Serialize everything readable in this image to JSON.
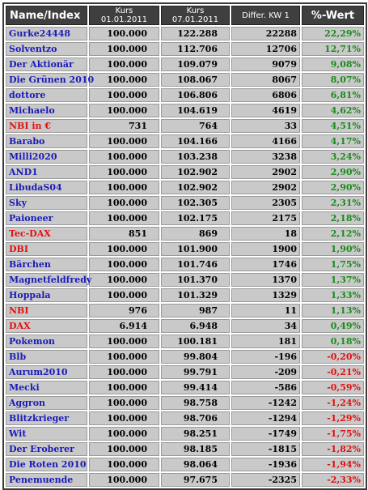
{
  "table": {
    "headers": {
      "name": "Name/Index",
      "kurs1": "Kurs 01.01.2011",
      "kurs2": "Kurs 07.01.2011",
      "diff": "Differ. KW 1",
      "pct": "%-Wert"
    },
    "colors": {
      "name_blue": "#1a1ab8",
      "name_red": "#e01010",
      "pct_positive": "#1a8a1a",
      "pct_negative": "#e01010",
      "header_bg": "#3f3f3f",
      "cell_bg": "#c9c9c9"
    },
    "rows": [
      {
        "name": "Gurke24448",
        "k1": "100.000",
        "k2": "122.288",
        "diff": "22288",
        "pct": "22,29%",
        "nc": "blue",
        "pc": "green"
      },
      {
        "name": "Solventzo",
        "k1": "100.000",
        "k2": "112.706",
        "diff": "12706",
        "pct": "12,71%",
        "nc": "blue",
        "pc": "green"
      },
      {
        "name": "Der Aktionär",
        "k1": "100.000",
        "k2": "109.079",
        "diff": "9079",
        "pct": "9,08%",
        "nc": "blue",
        "pc": "green"
      },
      {
        "name": "Die Grünen 2010",
        "k1": "100.000",
        "k2": "108.067",
        "diff": "8067",
        "pct": "8,07%",
        "nc": "blue",
        "pc": "green"
      },
      {
        "name": "dottore",
        "k1": "100.000",
        "k2": "106.806",
        "diff": "6806",
        "pct": "6,81%",
        "nc": "blue",
        "pc": "green"
      },
      {
        "name": "Michaelo",
        "k1": "100.000",
        "k2": "104.619",
        "diff": "4619",
        "pct": "4,62%",
        "nc": "blue",
        "pc": "green"
      },
      {
        "name": "NBI in €",
        "k1": "731",
        "k2": "764",
        "diff": "33",
        "pct": "4,51%",
        "nc": "red",
        "pc": "green"
      },
      {
        "name": "Barabo",
        "k1": "100.000",
        "k2": "104.166",
        "diff": "4166",
        "pct": "4,17%",
        "nc": "blue",
        "pc": "green"
      },
      {
        "name": "Milli2020",
        "k1": "100.000",
        "k2": "103.238",
        "diff": "3238",
        "pct": "3,24%",
        "nc": "blue",
        "pc": "green"
      },
      {
        "name": "AND1",
        "k1": "100.000",
        "k2": "102.902",
        "diff": "2902",
        "pct": "2,90%",
        "nc": "blue",
        "pc": "green"
      },
      {
        "name": "LibudaS04",
        "k1": "100.000",
        "k2": "102.902",
        "diff": "2902",
        "pct": "2,90%",
        "nc": "blue",
        "pc": "green"
      },
      {
        "name": "Sky",
        "k1": "100.000",
        "k2": "102.305",
        "diff": "2305",
        "pct": "2,31%",
        "nc": "blue",
        "pc": "green"
      },
      {
        "name": "Paioneer",
        "k1": "100.000",
        "k2": "102.175",
        "diff": "2175",
        "pct": "2,18%",
        "nc": "blue",
        "pc": "green"
      },
      {
        "name": "Tec-DAX",
        "k1": "851",
        "k2": "869",
        "diff": "18",
        "pct": "2,12%",
        "nc": "red",
        "pc": "green"
      },
      {
        "name": "DBI",
        "k1": "100.000",
        "k2": "101.900",
        "diff": "1900",
        "pct": "1,90%",
        "nc": "red",
        "pc": "green"
      },
      {
        "name": "Bärchen",
        "k1": "100.000",
        "k2": "101.746",
        "diff": "1746",
        "pct": "1,75%",
        "nc": "blue",
        "pc": "green"
      },
      {
        "name": "Magnetfeldfredy",
        "k1": "100.000",
        "k2": "101.370",
        "diff": "1370",
        "pct": "1,37%",
        "nc": "blue",
        "pc": "green"
      },
      {
        "name": "Hoppala",
        "k1": "100.000",
        "k2": "101.329",
        "diff": "1329",
        "pct": "1,33%",
        "nc": "blue",
        "pc": "green"
      },
      {
        "name": "NBI",
        "k1": "976",
        "k2": "987",
        "diff": "11",
        "pct": "1,13%",
        "nc": "red",
        "pc": "green"
      },
      {
        "name": "DAX",
        "k1": "6.914",
        "k2": "6.948",
        "diff": "34",
        "pct": "0,49%",
        "nc": "red",
        "pc": "green"
      },
      {
        "name": "Pokemon",
        "k1": "100.000",
        "k2": "100.181",
        "diff": "181",
        "pct": "0,18%",
        "nc": "blue",
        "pc": "green"
      },
      {
        "name": "Blb",
        "k1": "100.000",
        "k2": "99.804",
        "diff": "-196",
        "pct": "-0,20%",
        "nc": "blue",
        "pc": "neg"
      },
      {
        "name": "Aurum2010",
        "k1": "100.000",
        "k2": "99.791",
        "diff": "-209",
        "pct": "-0,21%",
        "nc": "blue",
        "pc": "neg"
      },
      {
        "name": "Mecki",
        "k1": "100.000",
        "k2": "99.414",
        "diff": "-586",
        "pct": "-0,59%",
        "nc": "blue",
        "pc": "neg"
      },
      {
        "name": "Aggron",
        "k1": "100.000",
        "k2": "98.758",
        "diff": "-1242",
        "pct": "-1,24%",
        "nc": "blue",
        "pc": "neg"
      },
      {
        "name": "Blitzkrieger",
        "k1": "100.000",
        "k2": "98.706",
        "diff": "-1294",
        "pct": "-1,29%",
        "nc": "blue",
        "pc": "neg"
      },
      {
        "name": "Wit",
        "k1": "100.000",
        "k2": "98.251",
        "diff": "-1749",
        "pct": "-1,75%",
        "nc": "blue",
        "pc": "neg"
      },
      {
        "name": "Der Eroberer",
        "k1": "100.000",
        "k2": "98.185",
        "diff": "-1815",
        "pct": "-1,82%",
        "nc": "blue",
        "pc": "neg"
      },
      {
        "name": "Die Roten 2010",
        "k1": "100.000",
        "k2": "98.064",
        "diff": "-1936",
        "pct": "-1,94%",
        "nc": "blue",
        "pc": "neg"
      },
      {
        "name": "Penemuende",
        "k1": "100.000",
        "k2": "97.675",
        "diff": "-2325",
        "pct": "-2,33%",
        "nc": "blue",
        "pc": "neg"
      }
    ]
  }
}
